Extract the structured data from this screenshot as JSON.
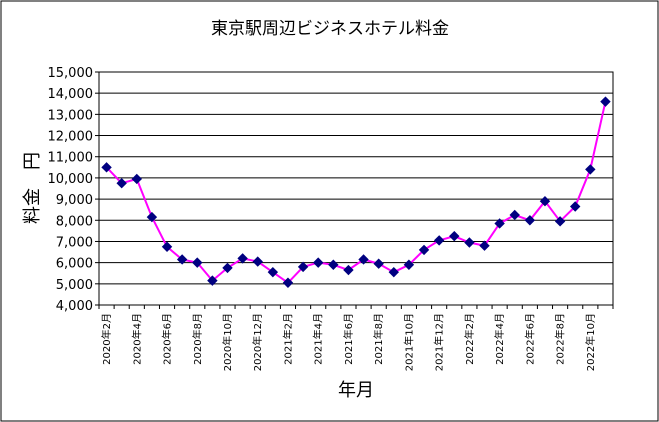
{
  "chart_data": {
    "type": "line",
    "title": "東京駅周辺ビジネスホテル料金",
    "xlabel": "年月",
    "ylabel": "料金　円",
    "ylim": [
      4000,
      15000
    ],
    "yticks": [
      4000,
      5000,
      6000,
      7000,
      8000,
      9000,
      10000,
      11000,
      12000,
      13000,
      14000,
      15000
    ],
    "ytick_labels": [
      "4,000",
      "5,000",
      "6,000",
      "7,000",
      "8,000",
      "9,000",
      "10,000",
      "11,000",
      "12,000",
      "13,000",
      "14,000",
      "15,000"
    ],
    "grid": true,
    "legend": "none",
    "categories": [
      "2020年2月",
      "2020年3月",
      "2020年4月",
      "2020年5月",
      "2020年6月",
      "2020年7月",
      "2020年8月",
      "2020年9月",
      "2020年10月",
      "2020年11月",
      "2020年12月",
      "2021年1月",
      "2021年2月",
      "2021年3月",
      "2021年4月",
      "2021年5月",
      "2021年6月",
      "2021年7月",
      "2021年8月",
      "2021年9月",
      "2021年10月",
      "2021年11月",
      "2021年12月",
      "2022年1月",
      "2022年2月",
      "2022年3月",
      "2022年4月",
      "2022年5月",
      "2022年6月",
      "2022年7月",
      "2022年8月",
      "2022年9月",
      "2022年10月",
      "2022年11月"
    ],
    "visible_tick_labels": [
      "2020年2月",
      "2020年4月",
      "2020年6月",
      "2020年8月",
      "2020年10月",
      "2020年12月",
      "2021年2月",
      "2021年4月",
      "2021年6月",
      "2021年8月",
      "2021年10月",
      "2021年12月",
      "2022年2月",
      "2022年4月",
      "2022年6月",
      "2022年8月",
      "2022年10月"
    ],
    "series": [
      {
        "values": [
          10500,
          9750,
          9950,
          8150,
          6750,
          6150,
          6000,
          5150,
          5750,
          6200,
          6050,
          5550,
          5050,
          5800,
          6000,
          5900,
          5650,
          6150,
          5950,
          5550,
          5900,
          6600,
          7050,
          7250,
          6950,
          6800,
          7850,
          8250,
          8000,
          8900,
          7950,
          8650,
          10400,
          13600
        ]
      }
    ],
    "colors": {
      "line": "#ff00ff",
      "marker": "#000080",
      "plot_background": "#ffffff",
      "grid": "#000000",
      "border": "#000000"
    }
  }
}
